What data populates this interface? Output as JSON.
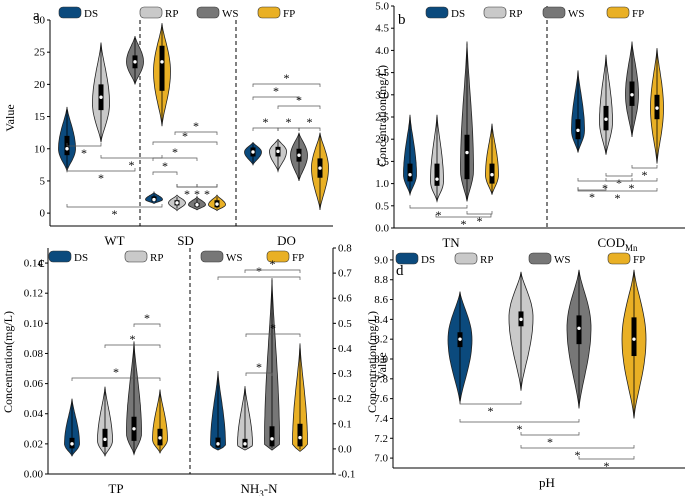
{
  "colors": {
    "DS": "#0b4a7d",
    "RP": "#c9c9c9",
    "WS": "#777777",
    "FP": "#e9b025"
  },
  "legend": [
    {
      "key": "DS",
      "label": "DS"
    },
    {
      "key": "RP",
      "label": "RP"
    },
    {
      "key": "WS",
      "label": "WS"
    },
    {
      "key": "FP",
      "label": "FP"
    }
  ],
  "star": "*",
  "chart_data": [
    {
      "panel": "a",
      "type": "violin",
      "ylabel": "Value",
      "ylim": [
        -2,
        30
      ],
      "yticks": [
        "0",
        "5",
        "10",
        "15",
        "20",
        "25",
        "30"
      ],
      "groups": [
        {
          "label": "WT",
          "violins": [
            {
              "series": "DS",
              "min": 6.5,
              "max": 16.5,
              "q1": 9,
              "q3": 12,
              "median": 10,
              "mode": 10
            },
            {
              "series": "RP",
              "min": 11,
              "max": 26.5,
              "q1": 16,
              "q3": 20,
              "median": 18,
              "mode": 17
            },
            {
              "series": "WS",
              "min": 20,
              "max": 27.5,
              "q1": 22.5,
              "q3": 24.5,
              "median": 23.5,
              "mode": 23.5
            },
            {
              "series": "FP",
              "min": 13.5,
              "max": 29.5,
              "q1": 19,
              "q3": 26,
              "median": 23.5,
              "mode": 22
            }
          ]
        },
        {
          "label": "SD",
          "violins": [
            {
              "series": "DS",
              "min": 1.5,
              "max": 3.2,
              "q1": 1.8,
              "q3": 2.6,
              "median": 2.1,
              "mode": 2.1
            },
            {
              "series": "RP",
              "min": 0.4,
              "max": 2.8,
              "q1": 1.2,
              "q3": 2.0,
              "median": 1.6,
              "mode": 1.6
            },
            {
              "series": "WS",
              "min": 0.5,
              "max": 2.5,
              "q1": 1.0,
              "q3": 1.6,
              "median": 1.3,
              "mode": 1.3
            },
            {
              "series": "FP",
              "min": 0.4,
              "max": 2.8,
              "q1": 0.9,
              "q3": 2.0,
              "median": 1.4,
              "mode": 1.3
            }
          ]
        },
        {
          "label": "DO",
          "violins": [
            {
              "series": "DS",
              "min": 7.5,
              "max": 11,
              "q1": 8.8,
              "q3": 10.2,
              "median": 9.5,
              "mode": 9.5
            },
            {
              "series": "RP",
              "min": 6.5,
              "max": 11.5,
              "q1": 8.8,
              "q3": 10.3,
              "median": 9.6,
              "mode": 9.6
            },
            {
              "series": "WS",
              "min": 5,
              "max": 12.5,
              "q1": 8,
              "q3": 10,
              "median": 9,
              "mode": 9
            },
            {
              "series": "FP",
              "min": 0.5,
              "max": 12.5,
              "q1": 5.5,
              "q3": 8.5,
              "median": 7,
              "mode": 7
            }
          ]
        }
      ],
      "sig_labels": [
        {
          "text": "*"
        },
        {
          "text": "*"
        },
        {
          "text": "*"
        },
        {
          "text": "*"
        },
        {
          "text": "*"
        },
        {
          "text": "*"
        },
        {
          "text": "*"
        },
        {
          "text": "*"
        },
        {
          "text": "*"
        },
        {
          "text": "*"
        },
        {
          "text": "*"
        },
        {
          "text": "*"
        },
        {
          "text": "*"
        },
        {
          "text": "*"
        },
        {
          "text": "*"
        },
        {
          "text": "*"
        },
        {
          "text": "*"
        }
      ]
    },
    {
      "panel": "b",
      "type": "violin",
      "ylabel": "Concentration(mg/L)",
      "ylim": [
        0,
        5
      ],
      "yticks": [
        "0.0",
        "0.5",
        "1.0",
        "1.5",
        "2.0",
        "2.5",
        "3.0",
        "3.5",
        "4.0",
        "4.5",
        "5.0"
      ],
      "groups": [
        {
          "label": "TN",
          "violins": [
            {
              "series": "DS",
              "min": 0.75,
              "max": 2.55,
              "q1": 1.05,
              "q3": 1.45,
              "median": 1.2,
              "mode": 1.2
            },
            {
              "series": "RP",
              "min": 0.6,
              "max": 2.55,
              "q1": 0.95,
              "q3": 1.45,
              "median": 1.1,
              "mode": 1.05
            },
            {
              "series": "WS",
              "min": 0.6,
              "max": 4.2,
              "q1": 1.1,
              "q3": 2.1,
              "median": 1.7,
              "mode": 1.3
            },
            {
              "series": "FP",
              "min": 0.75,
              "max": 2.35,
              "q1": 1.0,
              "q3": 1.45,
              "median": 1.2,
              "mode": 1.2
            }
          ]
        },
        {
          "label": "COD",
          "label_sub": "Mn",
          "violins": [
            {
              "series": "DS",
              "min": 1.7,
              "max": 3.55,
              "q1": 2.0,
              "q3": 2.45,
              "median": 2.2,
              "mode": 2.2
            },
            {
              "series": "RP",
              "min": 1.65,
              "max": 3.9,
              "q1": 2.2,
              "q3": 2.75,
              "median": 2.45,
              "mode": 2.4
            },
            {
              "series": "WS",
              "min": 2.05,
              "max": 4.2,
              "q1": 2.75,
              "q3": 3.3,
              "median": 3.0,
              "mode": 3.0
            },
            {
              "series": "FP",
              "min": 1.45,
              "max": 4.05,
              "q1": 2.45,
              "q3": 3.0,
              "median": 2.7,
              "mode": 2.7
            }
          ]
        }
      ],
      "sig_labels": [
        {
          "text": "*"
        },
        {
          "text": "*"
        },
        {
          "text": "*"
        },
        {
          "text": "*"
        },
        {
          "text": "*"
        },
        {
          "text": "*"
        },
        {
          "text": "*"
        },
        {
          "text": "*"
        },
        {
          "text": "*"
        }
      ]
    },
    {
      "panel": "c",
      "type": "violin",
      "ylabel": "Concentration(mg/L)",
      "ylim": [
        0,
        0.15
      ],
      "yticks": [
        "0.00",
        "0.02",
        "0.04",
        "0.06",
        "0.08",
        "0.10",
        "0.12",
        "0.14"
      ],
      "ylabel_right": "Concentration(mg/L)",
      "ylim_right": [
        -0.1,
        0.8
      ],
      "yticks_right": [
        "-0.1",
        "0.0",
        "0.1",
        "0.2",
        "0.3",
        "0.4",
        "0.5",
        "0.6",
        "0.7",
        "0.8"
      ],
      "groups": [
        {
          "label": "TP",
          "axis": "left",
          "violins": [
            {
              "series": "DS",
              "min": 0.012,
              "max": 0.05,
              "q1": 0.017,
              "q3": 0.024,
              "median": 0.02,
              "mode": 0.02
            },
            {
              "series": "RP",
              "min": 0.012,
              "max": 0.058,
              "q1": 0.018,
              "q3": 0.03,
              "median": 0.023,
              "mode": 0.022
            },
            {
              "series": "WS",
              "min": 0.013,
              "max": 0.088,
              "q1": 0.022,
              "q3": 0.038,
              "median": 0.03,
              "mode": 0.027
            },
            {
              "series": "FP",
              "min": 0.014,
              "max": 0.056,
              "q1": 0.019,
              "q3": 0.03,
              "median": 0.024,
              "mode": 0.023
            }
          ]
        },
        {
          "label": "NH",
          "label_sub": "3",
          "label_tail": "-N",
          "axis": "right",
          "violins": [
            {
              "series": "DS",
              "min": -0.005,
              "max": 0.31,
              "q1": 0.005,
              "q3": 0.045,
              "median": 0.02,
              "mode": 0.015
            },
            {
              "series": "RP",
              "min": -0.005,
              "max": 0.25,
              "q1": 0.005,
              "q3": 0.04,
              "median": 0.02,
              "mode": 0.015
            },
            {
              "series": "WS",
              "min": -0.005,
              "max": 0.68,
              "q1": 0.01,
              "q3": 0.09,
              "median": 0.04,
              "mode": 0.02
            },
            {
              "series": "FP",
              "min": -0.01,
              "max": 0.42,
              "q1": 0.01,
              "q3": 0.1,
              "median": 0.045,
              "mode": 0.02
            }
          ]
        }
      ],
      "sig_labels": [
        {
          "text": "*"
        },
        {
          "text": "*"
        },
        {
          "text": "*"
        },
        {
          "text": "*"
        },
        {
          "text": "*"
        },
        {
          "text": "*"
        },
        {
          "text": "*"
        }
      ]
    },
    {
      "panel": "d",
      "type": "violin",
      "ylabel": "Value",
      "ylim": [
        6.9,
        9.1
      ],
      "yticks": [
        "7.0",
        "7.2",
        "7.4",
        "7.6",
        "7.8",
        "8.0",
        "8.2",
        "8.4",
        "8.6",
        "8.8",
        "9.0"
      ],
      "groups": [
        {
          "label": "pH",
          "violins": [
            {
              "series": "DS",
              "min": 7.55,
              "max": 8.68,
              "q1": 8.12,
              "q3": 8.27,
              "median": 8.2,
              "mode": 8.2
            },
            {
              "series": "RP",
              "min": 7.68,
              "max": 8.88,
              "q1": 8.33,
              "q3": 8.48,
              "median": 8.4,
              "mode": 8.42
            },
            {
              "series": "WS",
              "min": 7.5,
              "max": 8.9,
              "q1": 8.15,
              "q3": 8.44,
              "median": 8.31,
              "mode": 8.32
            },
            {
              "series": "FP",
              "min": 7.4,
              "max": 8.9,
              "q1": 8.03,
              "q3": 8.42,
              "median": 8.2,
              "mode": 8.2
            }
          ]
        }
      ],
      "sig_labels": [
        {
          "text": "*"
        },
        {
          "text": "*"
        },
        {
          "text": "*"
        },
        {
          "text": "*"
        },
        {
          "text": "*"
        }
      ]
    }
  ]
}
